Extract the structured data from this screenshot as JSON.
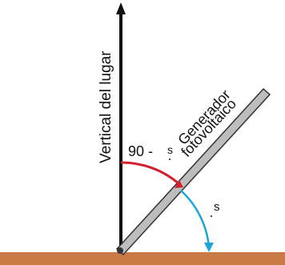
{
  "diagram": {
    "vertical_label": "Vertical del lugar",
    "panel_label_line1": "Generador",
    "panel_label_line2": "fotovoltaico",
    "complement_angle_prefix": "90 -",
    "angle_symbol": "s",
    "tilt_angle_symbol": "s"
  },
  "colors": {
    "ground": "#c97a45",
    "vertical_line": "#111111",
    "panel_fill": "#bdbdbd",
    "panel_stroke": "#333333",
    "complement_arc": "#d3202f",
    "tilt_arc": "#1aa6d9"
  }
}
